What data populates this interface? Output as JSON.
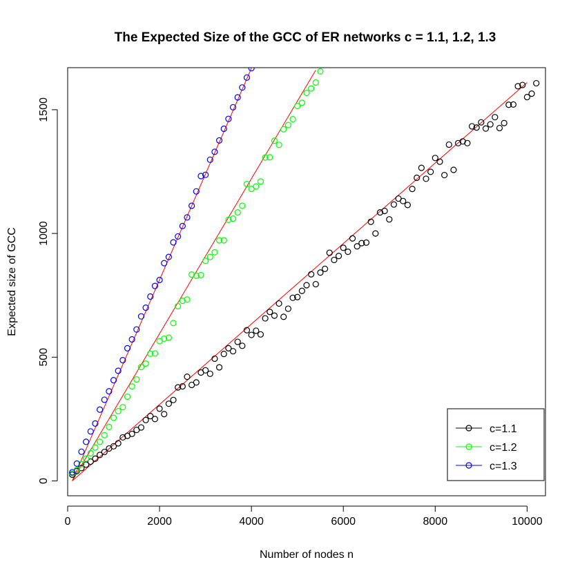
{
  "chart_data": {
    "type": "scatter",
    "title": "The Expected Size of the GCC of ER networks c = 1.1, 1.2, 1.3",
    "xlabel": "Number of nodes n",
    "ylabel": "Expected size of GCC",
    "xlim": [
      0,
      10400
    ],
    "ylim": [
      -60,
      1670
    ],
    "xticks": [
      0,
      2000,
      4000,
      6000,
      8000,
      10000
    ],
    "yticks": [
      0,
      500,
      1000,
      1500
    ],
    "xtick_labels": [
      "0",
      "2000",
      "4000",
      "6000",
      "8000",
      "10000"
    ],
    "ytick_labels": [
      "0",
      "500",
      "1000",
      "1500"
    ],
    "grid": false,
    "legend_position": "bottom-right",
    "fit_line_color": "#ff0000",
    "series": [
      {
        "name": "c=1.1",
        "color": "#000000",
        "x_start": 100,
        "x_step": 100,
        "values": [
          25,
          40,
          52,
          66,
          78,
          90,
          105,
          117,
          131,
          140,
          152,
          176,
          182,
          190,
          206,
          216,
          246,
          262,
          250,
          292,
          270,
          312,
          327,
          378,
          382,
          421,
          388,
          398,
          438,
          447,
          433,
          494,
          459,
          513,
          536,
          524,
          562,
          546,
          609,
          590,
          607,
          592,
          657,
          683,
          668,
          717,
          663,
          696,
          740,
          743,
          768,
          791,
          835,
          795,
          842,
          857,
          922,
          893,
          909,
          942,
          926,
          980,
          948,
          961,
          963,
          1047,
          1000,
          1085,
          1091,
          1057,
          1117,
          1141,
          1131,
          1115,
          1180,
          1225,
          1265,
          1221,
          1249,
          1305,
          1290,
          1236,
          1359,
          1257,
          1365,
          1372,
          1365,
          1433,
          1428,
          1449,
          1424,
          1441,
          1470,
          1426,
          1446,
          1520,
          1521,
          1595,
          1600,
          1551,
          1565,
          1607
        ]
      },
      {
        "name": "c=1.2",
        "color": "#00ff00",
        "x_start": 100,
        "x_step": 100,
        "values": [
          30,
          45,
          68,
          90,
          112,
          135,
          158,
          185,
          218,
          255,
          282,
          298,
          340,
          382,
          410,
          460,
          474,
          514,
          515,
          565,
          575,
          579,
          638,
          706,
          728,
          733,
          834,
          829,
          832,
          889,
          905,
          924,
          972,
          972,
          1055,
          1060,
          1085,
          1112,
          1200,
          1180,
          1190,
          1210,
          1307,
          1308,
          1375,
          1358,
          1421,
          1438,
          1462,
          1515,
          1528,
          1568,
          1586,
          1610,
          1655
        ]
      },
      {
        "name": "c=1.3",
        "color": "#0000ff",
        "x_start": 100,
        "x_step": 100,
        "values": [
          35,
          70,
          118,
          158,
          200,
          232,
          288,
          328,
          362,
          407,
          445,
          488,
          536,
          572,
          612,
          665,
          700,
          745,
          788,
          812,
          880,
          905,
          964,
          988,
          1030,
          1065,
          1112,
          1170,
          1232,
          1237,
          1298,
          1330,
          1376,
          1423,
          1463,
          1510,
          1550,
          1590,
          1630,
          1668
        ]
      }
    ],
    "fit_lines": [
      {
        "name": "c=1.1",
        "x": [
          100,
          10000
        ],
        "y": [
          0,
          1610
        ]
      },
      {
        "name": "c=1.2",
        "x": [
          100,
          5400
        ],
        "y": [
          0,
          1660
        ]
      },
      {
        "name": "c=1.3",
        "x": [
          100,
          4000
        ],
        "y": [
          0,
          1668
        ]
      }
    ]
  }
}
